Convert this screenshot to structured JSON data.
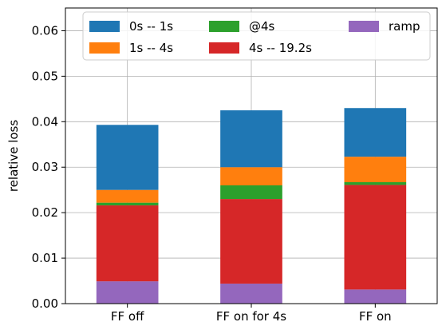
{
  "chart_data": {
    "type": "bar",
    "stacked": true,
    "categories": [
      "FF off",
      "FF on for 4s",
      "FF on"
    ],
    "ylabel": "relative loss",
    "ylim": [
      0,
      0.065
    ],
    "yticks": [
      "0.00",
      "0.01",
      "0.02",
      "0.03",
      "0.04",
      "0.05",
      "0.06"
    ],
    "grid": true,
    "legend_position": "top",
    "series": [
      {
        "name": "ramp",
        "color": "#9467bd",
        "values": [
          0.0049,
          0.0044,
          0.0031
        ]
      },
      {
        "name": "4s -- 19.2s",
        "color": "#d62728",
        "values": [
          0.0167,
          0.0186,
          0.023
        ]
      },
      {
        "name": "@4s",
        "color": "#2ca02c",
        "values": [
          0.0006,
          0.003,
          0.0006
        ]
      },
      {
        "name": "1s -- 4s",
        "color": "#ff7f0e",
        "values": [
          0.0028,
          0.004,
          0.0056
        ]
      },
      {
        "name": "0s -- 1s",
        "color": "#1f77b4",
        "values": [
          0.0143,
          0.0125,
          0.0107
        ]
      }
    ],
    "legend_order": [
      "0s -- 1s",
      "@4s",
      "ramp",
      "1s -- 4s",
      "4s -- 19.2s"
    ]
  }
}
